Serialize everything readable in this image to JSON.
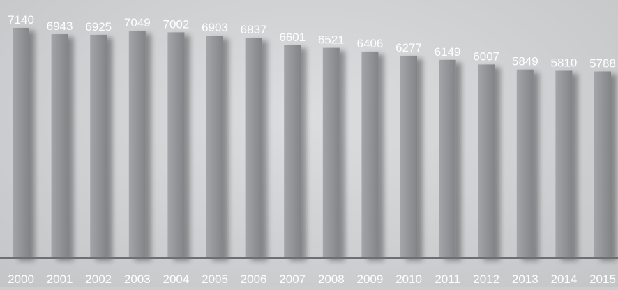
{
  "chart_data": {
    "type": "bar",
    "categories": [
      "2000",
      "2001",
      "2002",
      "2003",
      "2004",
      "2005",
      "2006",
      "2007",
      "2008",
      "2009",
      "2010",
      "2011",
      "2012",
      "2013",
      "2014",
      "2015"
    ],
    "values": [
      7140,
      6943,
      6925,
      7049,
      7002,
      6903,
      6837,
      6601,
      6521,
      6406,
      6277,
      6149,
      6007,
      5849,
      5810,
      5788
    ],
    "title": "",
    "xlabel": "",
    "ylabel": "",
    "ylim": [
      0,
      7140
    ],
    "grid": false,
    "legend": "none",
    "data_labels": true,
    "colors": {
      "background": "#cccdcf",
      "bar_light": "#a4a5a8",
      "bar_dark": "#838487",
      "axis": "#6e6f72",
      "label": "#ffffff"
    }
  }
}
